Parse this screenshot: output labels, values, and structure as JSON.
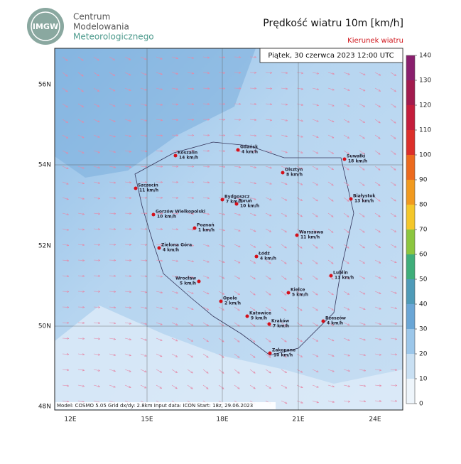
{
  "logo": {
    "badge": "IMGW",
    "lines": [
      "Centrum",
      "Modelowania",
      "Meteorologicznego"
    ]
  },
  "title": "Prędkość wiatru 10m [km/h]",
  "subtitle": "Kierunek wiatru",
  "valid_time": "Piątek, 30 czerwca 2023 12:00 UTC",
  "footer": "Model: COSMO 5.05  Grid dx/dy: 2.8km  Input data: ICON  Start: 18z, 29.06.2023",
  "lat_labels": [
    "56N",
    "54N",
    "52N",
    "50N",
    "48N"
  ],
  "lon_labels": [
    "12E",
    "15E",
    "18E",
    "21E",
    "24E"
  ],
  "colorbar": {
    "ylim": [
      0,
      140
    ],
    "ticks": [
      0,
      10,
      20,
      30,
      40,
      50,
      60,
      70,
      80,
      90,
      100,
      110,
      120,
      130,
      140
    ],
    "colors": [
      "#eef5fb",
      "#c9e0f3",
      "#9cc7ea",
      "#6aa6d6",
      "#4f9bb8",
      "#3fae7a",
      "#8cc63f",
      "#f4c72a",
      "#f19a1f",
      "#ec6a1e",
      "#dc2f2a",
      "#c41d3c",
      "#a21b4e",
      "#8a1f6e",
      "#b3119a"
    ]
  },
  "cities": [
    {
      "name": "Gdańsk",
      "wind": "4 km/h"
    },
    {
      "name": "Koszalin",
      "wind": "14 km/h"
    },
    {
      "name": "Suwałki",
      "wind": "18 km/h"
    },
    {
      "name": "Olsztyn",
      "wind": "8 km/h"
    },
    {
      "name": "Szczecin",
      "wind": "11 km/h"
    },
    {
      "name": "Białystok",
      "wind": "13 km/h"
    },
    {
      "name": "Bydgoszcz",
      "wind": "7 km/h"
    },
    {
      "name": "Toruń",
      "wind": "10 km/h"
    },
    {
      "name": "Gorzów Wielkopolski",
      "wind": "10 km/h"
    },
    {
      "name": "Poznań",
      "wind": "1 km/h"
    },
    {
      "name": "Warszawa",
      "wind": "11 km/h"
    },
    {
      "name": "Zielona Góra",
      "wind": "4 km/h"
    },
    {
      "name": "Łódź",
      "wind": "4 km/h"
    },
    {
      "name": "Lublin",
      "wind": "11 km/h"
    },
    {
      "name": "Wrocław",
      "wind": "5 km/h"
    },
    {
      "name": "Opole",
      "wind": "2 km/h"
    },
    {
      "name": "Kielce",
      "wind": "5 km/h"
    },
    {
      "name": "Katowice",
      "wind": "9 km/h"
    },
    {
      "name": "Kraków",
      "wind": "7 km/h"
    },
    {
      "name": "Rzeszów",
      "wind": "4 km/h"
    },
    {
      "name": "Zakopane",
      "wind": "10 km/h"
    }
  ]
}
